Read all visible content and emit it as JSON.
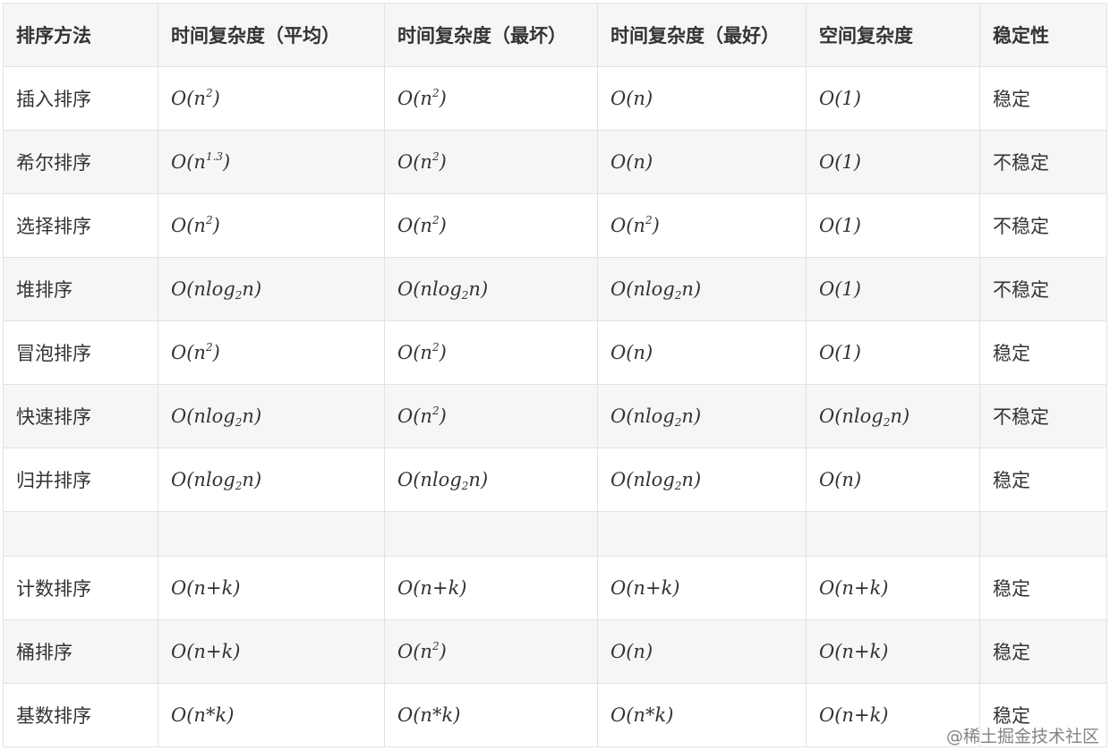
{
  "headers": [
    "排序方法",
    "时间复杂度（平均）",
    "时间复杂度（最坏）",
    "时间复杂度（最好）",
    "空间复杂度",
    "稳定性"
  ],
  "rows": [
    {
      "name": "插入排序",
      "avg": "O(n^{2})",
      "worst": "O(n^{2})",
      "best": "O(n)",
      "space": "O(1)",
      "stable": "稳定"
    },
    {
      "name": "希尔排序",
      "avg": "O(n^{1.3})",
      "worst": "O(n^{2})",
      "best": "O(n)",
      "space": "O(1)",
      "stable": "不稳定"
    },
    {
      "name": "选择排序",
      "avg": "O(n^{2})",
      "worst": "O(n^{2})",
      "best": "O(n^{2})",
      "space": "O(1)",
      "stable": "不稳定"
    },
    {
      "name": "堆排序",
      "avg": "O(nlog_{2}n)",
      "worst": "O(nlog_{2}n)",
      "best": "O(nlog_{2}n)",
      "space": "O(1)",
      "stable": "不稳定"
    },
    {
      "name": "冒泡排序",
      "avg": "O(n^{2})",
      "worst": "O(n^{2})",
      "best": "O(n)",
      "space": "O(1)",
      "stable": "稳定"
    },
    {
      "name": "快速排序",
      "avg": "O(nlog_{2}n)",
      "worst": "O(n^{2})",
      "best": "O(nlog_{2}n)",
      "space": "O(nlog_{2}n)",
      "stable": "不稳定"
    },
    {
      "name": "归并排序",
      "avg": "O(nlog_{2}n)",
      "worst": "O(nlog_{2}n)",
      "best": "O(nlog_{2}n)",
      "space": "O(n)",
      "stable": "稳定"
    },
    null,
    {
      "name": "计数排序",
      "avg": "O(n+k)",
      "worst": "O(n+k)",
      "best": "O(n+k)",
      "space": "O(n+k)",
      "stable": "稳定"
    },
    {
      "name": "桶排序",
      "avg": "O(n+k)",
      "worst": "O(n^{2})",
      "best": "O(n)",
      "space": "O(n+k)",
      "stable": "稳定"
    },
    {
      "name": "基数排序",
      "avg": "O(n*k)",
      "worst": "O(n*k)",
      "best": "O(n*k)",
      "space": "O(n+k)",
      "stable": "稳定"
    }
  ],
  "watermark": "@稀土掘金技术社区",
  "colors": {
    "header_bg": "#f6f6f6",
    "border": "#dfe2e5",
    "text": "#333333"
  }
}
